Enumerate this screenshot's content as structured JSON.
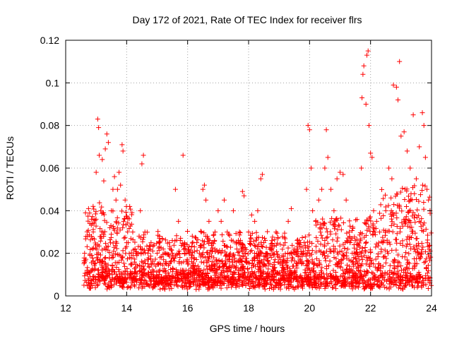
{
  "chart_data": {
    "type": "scatter",
    "title": "Day 172 of 2021, Rate Of TEC Index for receiver flrs",
    "xlabel": "GPS time / hours",
    "ylabel": "ROTI / TECUs",
    "xlim": [
      12,
      24
    ],
    "ylim": [
      0,
      0.12
    ],
    "x_ticks": [
      "12",
      "14",
      "16",
      "18",
      "20",
      "22",
      "24"
    ],
    "y_ticks": [
      "0",
      "0.02",
      "0.04",
      "0.06",
      "0.08",
      "0.1",
      "0.12"
    ],
    "grid": true,
    "marker": "plus",
    "color": "#ff0000",
    "series": [
      {
        "name": "ROTI",
        "points": [
          [
            12.6,
            0.005
          ],
          [
            12.62,
            0.02
          ],
          [
            12.65,
            0.039
          ],
          [
            12.7,
            0.012
          ],
          [
            12.72,
            0.028
          ],
          [
            12.75,
            0.041
          ],
          [
            12.8,
            0.009
          ],
          [
            12.85,
            0.036
          ],
          [
            12.9,
            0.042
          ],
          [
            12.95,
            0.015
          ],
          [
            13.0,
            0.058
          ],
          [
            13.05,
            0.083
          ],
          [
            13.08,
            0.079
          ],
          [
            13.1,
            0.066
          ],
          [
            13.15,
            0.04
          ],
          [
            13.2,
            0.064
          ],
          [
            13.25,
            0.054
          ],
          [
            13.3,
            0.069
          ],
          [
            13.35,
            0.076
          ],
          [
            13.4,
            0.072
          ],
          [
            13.45,
            0.032
          ],
          [
            13.5,
            0.04
          ],
          [
            13.55,
            0.05
          ],
          [
            13.6,
            0.056
          ],
          [
            13.65,
            0.045
          ],
          [
            13.7,
            0.05
          ],
          [
            13.75,
            0.058
          ],
          [
            13.8,
            0.052
          ],
          [
            13.85,
            0.071
          ],
          [
            13.88,
            0.068
          ],
          [
            13.9,
            0.035
          ],
          [
            13.95,
            0.045
          ],
          [
            14.0,
            0.025
          ],
          [
            14.1,
            0.018
          ],
          [
            14.2,
            0.03
          ],
          [
            14.3,
            0.02
          ],
          [
            14.45,
            0.04
          ],
          [
            14.5,
            0.062
          ],
          [
            14.55,
            0.066
          ],
          [
            14.6,
            0.03
          ],
          [
            14.7,
            0.02
          ],
          [
            14.8,
            0.025
          ],
          [
            14.9,
            0.015
          ],
          [
            15.0,
            0.02
          ],
          [
            15.1,
            0.018
          ],
          [
            15.2,
            0.022
          ],
          [
            15.3,
            0.015
          ],
          [
            15.4,
            0.025
          ],
          [
            15.5,
            0.02
          ],
          [
            15.6,
            0.05
          ],
          [
            15.7,
            0.035
          ],
          [
            15.85,
            0.066
          ],
          [
            15.9,
            0.02
          ],
          [
            16.0,
            0.015
          ],
          [
            16.1,
            0.01
          ],
          [
            16.2,
            0.018
          ],
          [
            16.3,
            0.025
          ],
          [
            16.45,
            0.03
          ],
          [
            16.5,
            0.05
          ],
          [
            16.55,
            0.052
          ],
          [
            16.6,
            0.045
          ],
          [
            16.7,
            0.035
          ],
          [
            16.8,
            0.025
          ],
          [
            16.9,
            0.03
          ],
          [
            17.0,
            0.04
          ],
          [
            17.1,
            0.035
          ],
          [
            17.2,
            0.045
          ],
          [
            17.3,
            0.03
          ],
          [
            17.4,
            0.02
          ],
          [
            17.5,
            0.04
          ],
          [
            17.6,
            0.025
          ],
          [
            17.7,
            0.03
          ],
          [
            17.8,
            0.049
          ],
          [
            17.85,
            0.047
          ],
          [
            17.9,
            0.02
          ],
          [
            18.0,
            0.03
          ],
          [
            18.1,
            0.038
          ],
          [
            18.2,
            0.035
          ],
          [
            18.3,
            0.04
          ],
          [
            18.4,
            0.055
          ],
          [
            18.45,
            0.057
          ],
          [
            18.5,
            0.025
          ],
          [
            18.6,
            0.02
          ],
          [
            18.7,
            0.015
          ],
          [
            18.8,
            0.02
          ],
          [
            18.9,
            0.03
          ],
          [
            19.0,
            0.018
          ],
          [
            19.1,
            0.015
          ],
          [
            19.2,
            0.025
          ],
          [
            19.3,
            0.035
          ],
          [
            19.4,
            0.041
          ],
          [
            19.5,
            0.02
          ],
          [
            19.6,
            0.015
          ],
          [
            19.7,
            0.025
          ],
          [
            19.8,
            0.02
          ],
          [
            19.9,
            0.05
          ],
          [
            19.95,
            0.08
          ],
          [
            20.0,
            0.078
          ],
          [
            20.05,
            0.06
          ],
          [
            20.1,
            0.04
          ],
          [
            20.2,
            0.035
          ],
          [
            20.3,
            0.045
          ],
          [
            20.4,
            0.05
          ],
          [
            20.5,
            0.06
          ],
          [
            20.55,
            0.078
          ],
          [
            20.6,
            0.065
          ],
          [
            20.7,
            0.05
          ],
          [
            20.8,
            0.04
          ],
          [
            20.9,
            0.055
          ],
          [
            21.0,
            0.058
          ],
          [
            21.1,
            0.057
          ],
          [
            21.2,
            0.045
          ],
          [
            21.3,
            0.03
          ],
          [
            21.4,
            0.02
          ],
          [
            21.5,
            0.015
          ],
          [
            21.6,
            0.012
          ],
          [
            21.7,
            0.06
          ],
          [
            21.72,
            0.093
          ],
          [
            21.75,
            0.104
          ],
          [
            21.78,
            0.108
          ],
          [
            21.85,
            0.09
          ],
          [
            21.88,
            0.113
          ],
          [
            21.92,
            0.115
          ],
          [
            21.95,
            0.08
          ],
          [
            22.0,
            0.067
          ],
          [
            22.05,
            0.065
          ],
          [
            22.1,
            0.04
          ],
          [
            22.2,
            0.035
          ],
          [
            22.3,
            0.03
          ],
          [
            22.4,
            0.025
          ],
          [
            22.5,
            0.04
          ],
          [
            22.6,
            0.06
          ],
          [
            22.7,
            0.055
          ],
          [
            22.75,
            0.099
          ],
          [
            22.85,
            0.098
          ],
          [
            22.9,
            0.092
          ],
          [
            22.95,
            0.11
          ],
          [
            23.0,
            0.075
          ],
          [
            23.1,
            0.077
          ],
          [
            23.2,
            0.068
          ],
          [
            23.3,
            0.06
          ],
          [
            23.4,
            0.085
          ],
          [
            23.5,
            0.055
          ],
          [
            23.6,
            0.07
          ],
          [
            23.7,
            0.086
          ],
          [
            23.75,
            0.08
          ],
          [
            23.8,
            0.065
          ],
          [
            23.85,
            0.05
          ],
          [
            23.9,
            0.045
          ],
          [
            23.95,
            0.04
          ]
        ]
      }
    ]
  }
}
